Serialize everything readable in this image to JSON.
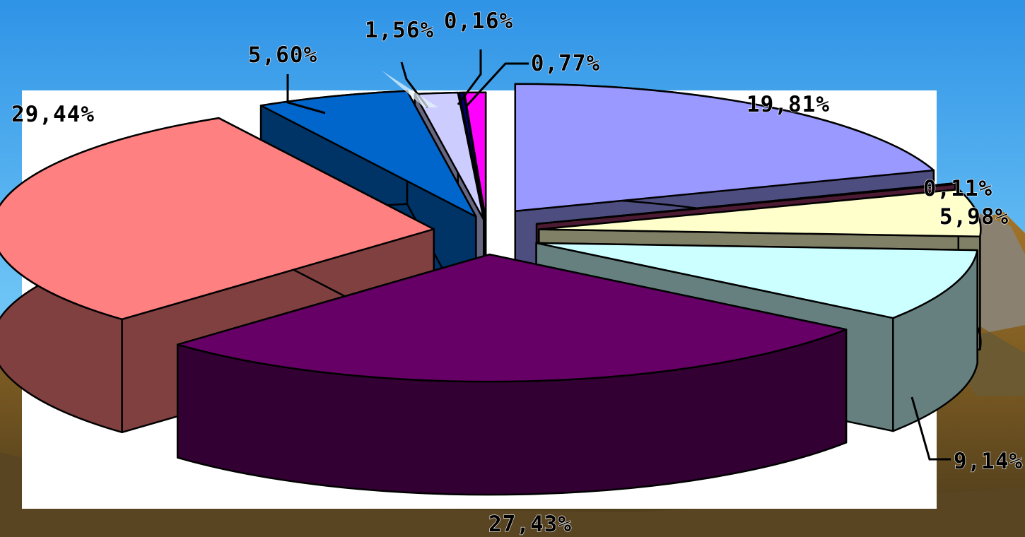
{
  "chart_data": {
    "type": "pie",
    "title": "",
    "three_d": true,
    "slices": [
      {
        "label": "19,81%",
        "value": 19.81,
        "color": "#9999ff",
        "side": "#4d4d80"
      },
      {
        "label": "0,11%",
        "value": 0.11,
        "color": "#993366",
        "side": "#4d1a33"
      },
      {
        "label": "5,98%",
        "value": 5.98,
        "color": "#ffffcc",
        "side": "#808066"
      },
      {
        "label": "9,14%",
        "value": 9.14,
        "color": "#ccffff",
        "side": "#668080"
      },
      {
        "label": "27,43%",
        "value": 27.43,
        "color": "#660066",
        "side": "#330033"
      },
      {
        "label": "29,44%",
        "value": 29.44,
        "color": "#ff8080",
        "side": "#804040"
      },
      {
        "label": "5,60%",
        "value": 5.6,
        "color": "#0066cc",
        "side": "#003366"
      },
      {
        "label": "1,56%",
        "value": 1.56,
        "color": "#ccccff",
        "side": "#666680"
      },
      {
        "label": "0,16%",
        "value": 0.16,
        "color": "#000080",
        "side": "#000040"
      },
      {
        "label": "0,77%",
        "value": 0.77,
        "color": "#ff00ff",
        "side": "#800080"
      }
    ],
    "legend": "none",
    "background": "photo of sky and autumn hillside"
  }
}
